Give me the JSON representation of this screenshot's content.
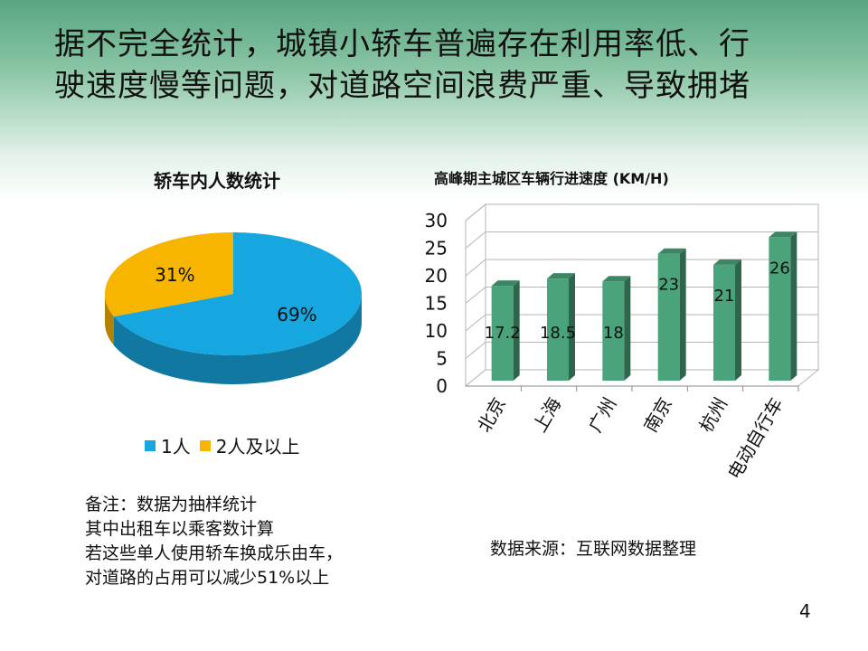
{
  "slide": {
    "title_line1": "据不完全统计，城镇小轿车普遍存在利用率低、行",
    "title_line2": "驶速度慢等问题，对道路空间浪费严重、导致拥堵",
    "note": [
      "备注：数据为抽样统计",
      "其中出租车以乘客数计算",
      "若这些单人使用轿车换成乐由车，",
      "对道路的占用可以减少51%以上"
    ],
    "source": "数据来源：互联网数据整理",
    "page_number": "4"
  },
  "chart_data": [
    {
      "type": "pie",
      "title": "轿车内人数统计",
      "categories": [
        "1人",
        "2人及以上"
      ],
      "values": [
        69,
        31
      ],
      "data_labels": [
        "69%",
        "31%"
      ],
      "colors": [
        "#16a7e0",
        "#f7b500"
      ],
      "legend_position": "bottom"
    },
    {
      "type": "bar",
      "title": "高峰期主城区车辆行进速度 (KM/H)",
      "categories": [
        "北京",
        "上海",
        "广州",
        "南京",
        "杭州",
        "电动自行车"
      ],
      "values": [
        17.2,
        18.5,
        18,
        23,
        21,
        26
      ],
      "data_labels": [
        "17.2",
        "18.5",
        "18",
        "23",
        "21",
        "26"
      ],
      "yticks": [
        "0",
        "5",
        "10",
        "15",
        "20",
        "25",
        "30"
      ],
      "ylim": [
        0,
        30
      ],
      "grid": true,
      "color": "#4aa37a"
    }
  ]
}
